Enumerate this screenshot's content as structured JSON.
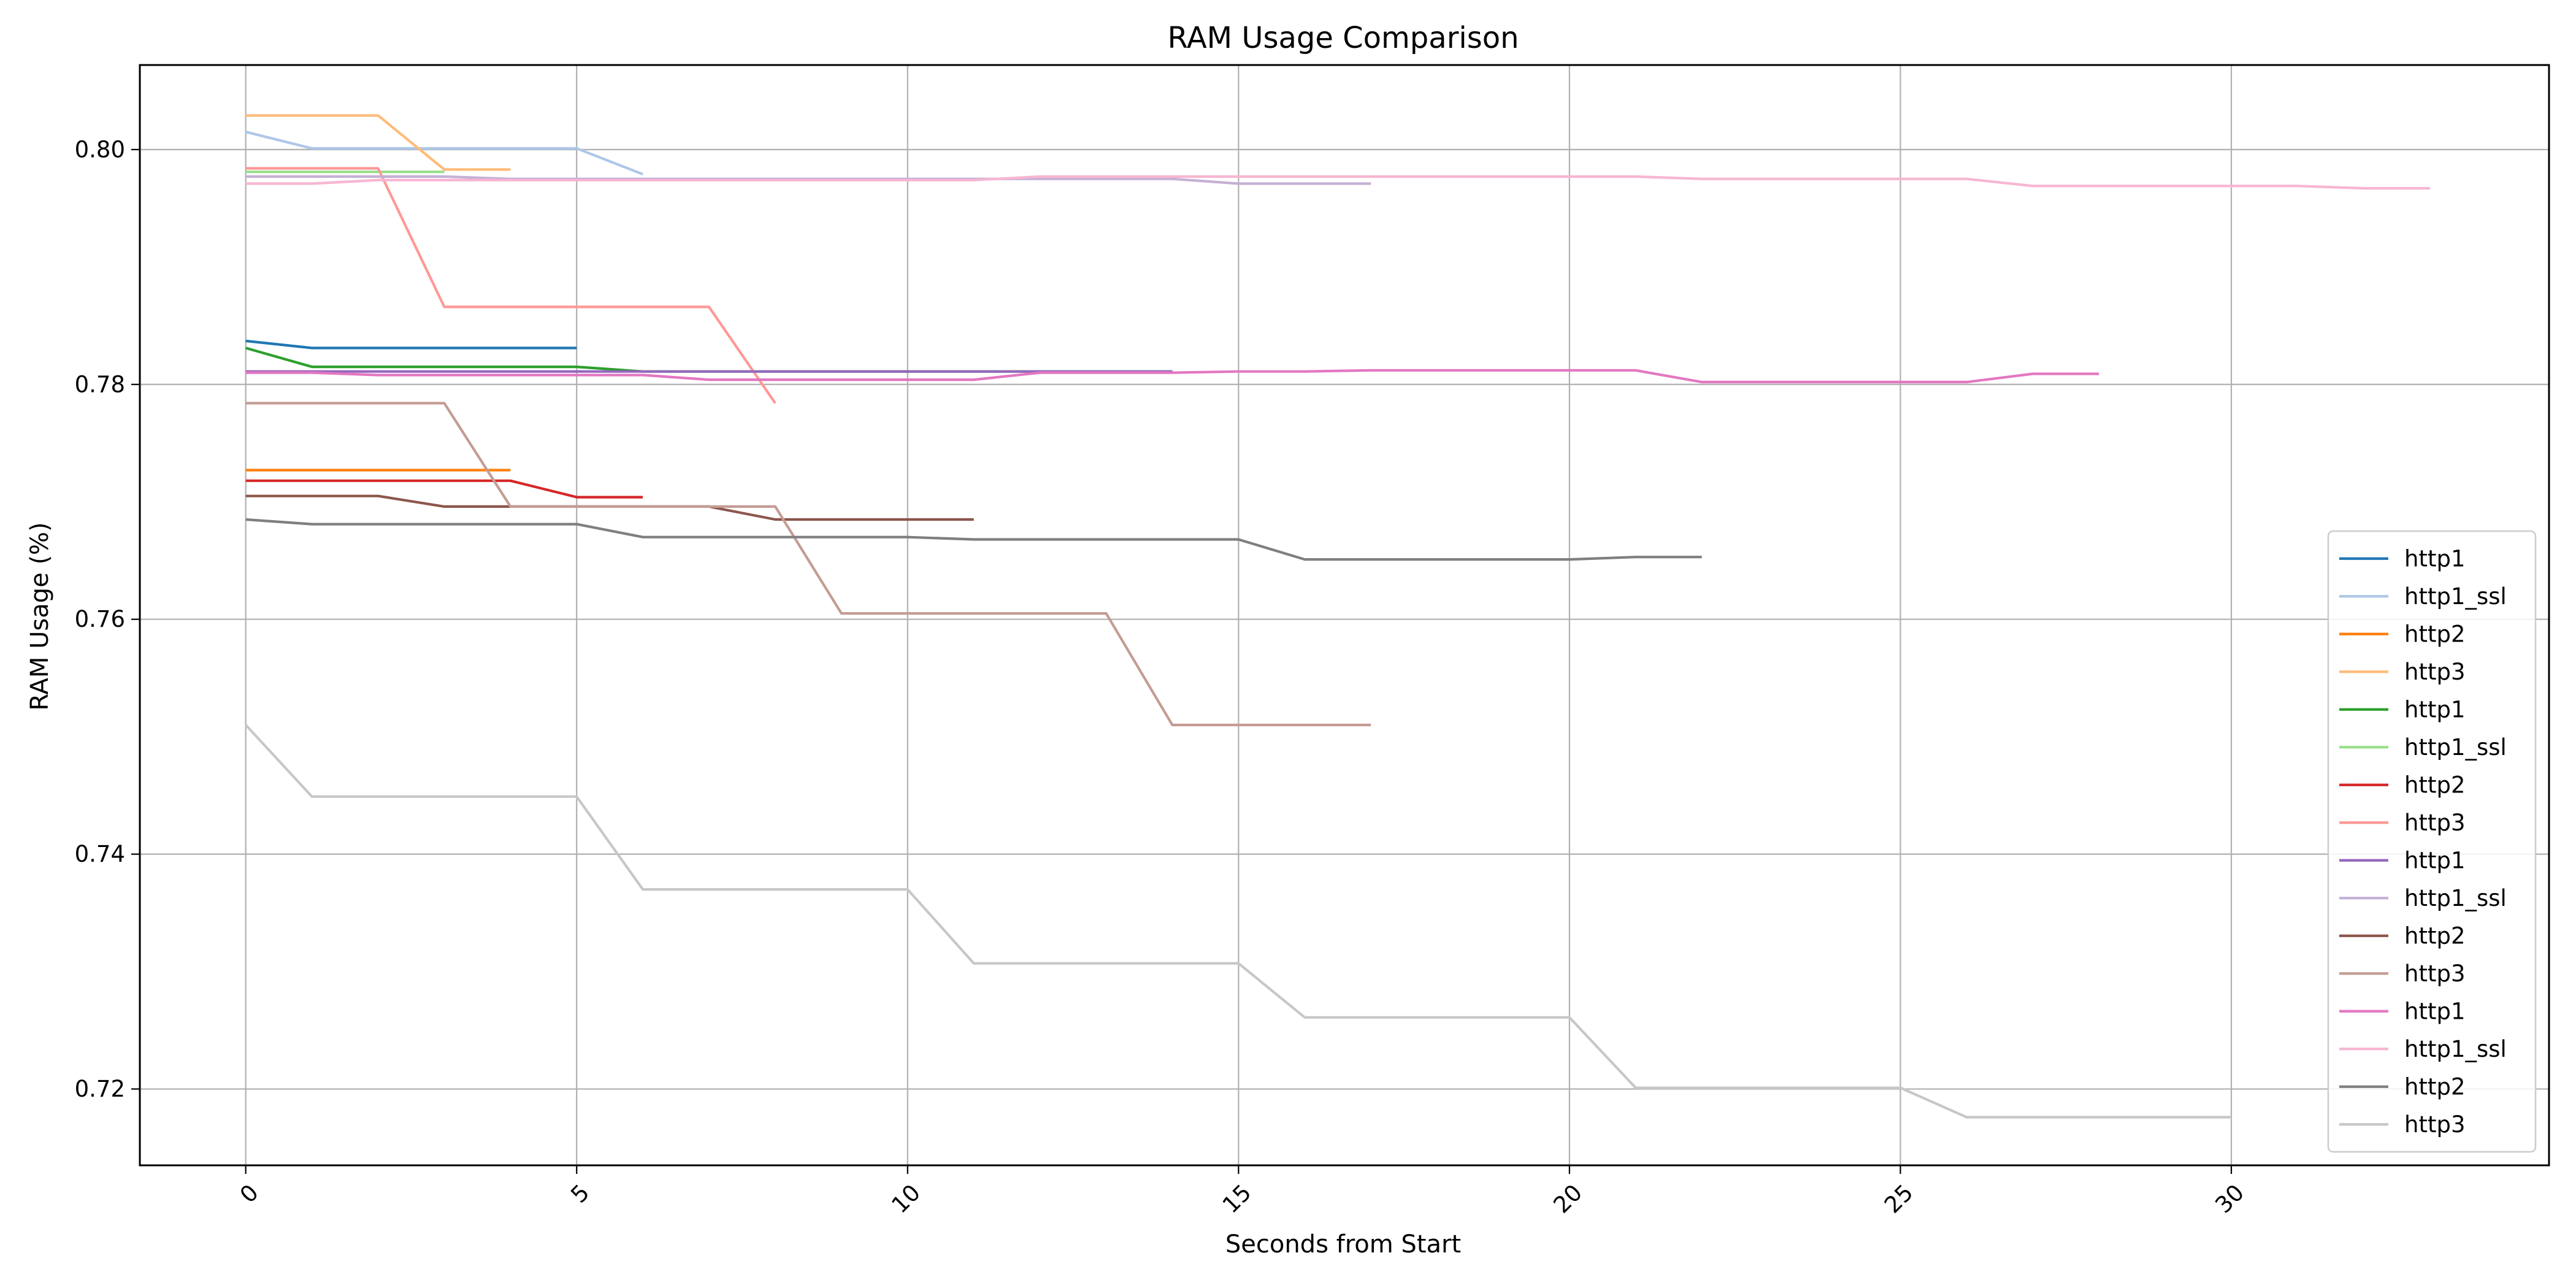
{
  "chart_data": {
    "type": "line",
    "title": "RAM Usage Comparison",
    "xlabel": "Seconds from Start",
    "ylabel": "RAM Usage (%)",
    "xlim": [
      -1.6,
      34.8
    ],
    "ylim": [
      0.7135,
      0.8072
    ],
    "xticks": [
      0,
      5,
      10,
      15,
      20,
      25,
      30
    ],
    "yticks": [
      0.72,
      0.74,
      0.76,
      0.78,
      0.8
    ],
    "ytick_labels": [
      "0.72",
      "0.74",
      "0.76",
      "0.78",
      "0.80"
    ],
    "xtick_rotation": 45,
    "grid": true,
    "legend_position": "lower right",
    "series": [
      {
        "name": "http1",
        "color": "#1f77b4",
        "x": [
          0,
          1,
          2,
          3,
          4,
          5
        ],
        "y": [
          0.7837,
          0.7831,
          0.7831,
          0.7831,
          0.7831,
          0.7831
        ]
      },
      {
        "name": "http1_ssl",
        "color": "#aec7e8",
        "x": [
          0,
          1,
          2,
          3,
          4,
          5,
          6
        ],
        "y": [
          0.8015,
          0.8001,
          0.8001,
          0.8001,
          0.8001,
          0.8001,
          0.7979
        ]
      },
      {
        "name": "http2",
        "color": "#ff7f0e",
        "x": [
          0,
          1,
          2,
          3,
          4
        ],
        "y": [
          0.7727,
          0.7727,
          0.7727,
          0.7727,
          0.7727
        ]
      },
      {
        "name": "http3",
        "color": "#ffbb78",
        "x": [
          0,
          1,
          2,
          3,
          4
        ],
        "y": [
          0.8029,
          0.8029,
          0.8029,
          0.7983,
          0.7983
        ]
      },
      {
        "name": "http1",
        "color": "#2ca02c",
        "x": [
          0,
          1,
          2,
          3,
          4,
          5,
          6,
          7,
          8,
          9,
          10,
          11,
          12,
          13,
          14
        ],
        "y": [
          0.7831,
          0.7815,
          0.7815,
          0.7815,
          0.7815,
          0.7815,
          0.7811,
          0.7811,
          0.7811,
          0.7811,
          0.7811,
          0.7811,
          0.7811,
          0.7811,
          0.7811
        ]
      },
      {
        "name": "http1_ssl",
        "color": "#98df8a",
        "x": [
          0,
          1,
          2,
          3
        ],
        "y": [
          0.7981,
          0.7981,
          0.7981,
          0.7981
        ]
      },
      {
        "name": "http2",
        "color": "#d62728",
        "x": [
          0,
          1,
          2,
          3,
          4,
          5,
          6
        ],
        "y": [
          0.7718,
          0.7718,
          0.7718,
          0.7718,
          0.7718,
          0.7704,
          0.7704
        ]
      },
      {
        "name": "http3",
        "color": "#ff9896",
        "x": [
          0,
          1,
          2,
          3,
          4,
          5,
          6,
          7,
          8
        ],
        "y": [
          0.7984,
          0.7984,
          0.7984,
          0.7866,
          0.7866,
          0.7866,
          0.7866,
          0.7866,
          0.7784
        ]
      },
      {
        "name": "http1",
        "color": "#9467bd",
        "x": [
          0,
          1,
          2,
          3,
          4,
          5,
          6,
          7,
          8,
          9,
          10,
          11,
          12,
          13,
          14
        ],
        "y": [
          0.7811,
          0.7811,
          0.7811,
          0.7811,
          0.7811,
          0.7811,
          0.7811,
          0.7811,
          0.7811,
          0.7811,
          0.7811,
          0.7811,
          0.7811,
          0.7811,
          0.7811
        ]
      },
      {
        "name": "http1_ssl",
        "color": "#c5b0d5",
        "x": [
          0,
          1,
          2,
          3,
          4,
          5,
          6,
          7,
          8,
          9,
          10,
          11,
          12,
          13,
          14,
          15,
          16,
          17
        ],
        "y": [
          0.7977,
          0.7977,
          0.7977,
          0.7977,
          0.7975,
          0.7975,
          0.7975,
          0.7975,
          0.7975,
          0.7975,
          0.7975,
          0.7975,
          0.7975,
          0.7975,
          0.7975,
          0.7971,
          0.7971,
          0.7971
        ]
      },
      {
        "name": "http2",
        "color": "#8c564b",
        "x": [
          0,
          1,
          2,
          3,
          4,
          5,
          6,
          7,
          8,
          9,
          10,
          11
        ],
        "y": [
          0.7705,
          0.7705,
          0.7705,
          0.7696,
          0.7696,
          0.7696,
          0.7696,
          0.7696,
          0.7685,
          0.7685,
          0.7685,
          0.7685
        ]
      },
      {
        "name": "http3",
        "color": "#c49c94",
        "x": [
          0,
          1,
          2,
          3,
          4,
          5,
          6,
          7,
          8,
          9,
          10,
          11,
          12,
          13,
          14,
          15,
          16,
          17
        ],
        "y": [
          0.7784,
          0.7784,
          0.7784,
          0.7784,
          0.7696,
          0.7696,
          0.7696,
          0.7696,
          0.7696,
          0.7605,
          0.7605,
          0.7605,
          0.7605,
          0.7605,
          0.751,
          0.751,
          0.751,
          0.751
        ]
      },
      {
        "name": "http1",
        "color": "#e377c2",
        "x": [
          0,
          1,
          2,
          3,
          4,
          5,
          6,
          7,
          8,
          9,
          10,
          11,
          12,
          13,
          14,
          15,
          16,
          17,
          18,
          19,
          20,
          21,
          22,
          23,
          24,
          25,
          26,
          27,
          28
        ],
        "y": [
          0.781,
          0.781,
          0.7808,
          0.7808,
          0.7808,
          0.7808,
          0.7808,
          0.7804,
          0.7804,
          0.7804,
          0.7804,
          0.7804,
          0.781,
          0.781,
          0.781,
          0.7811,
          0.7811,
          0.7812,
          0.7812,
          0.7812,
          0.7812,
          0.7812,
          0.7802,
          0.7802,
          0.7802,
          0.7802,
          0.7802,
          0.7809,
          0.7809
        ]
      },
      {
        "name": "http1_ssl",
        "color": "#f7b6d2",
        "x": [
          0,
          1,
          2,
          3,
          4,
          5,
          6,
          7,
          8,
          9,
          10,
          11,
          12,
          13,
          14,
          15,
          16,
          17,
          18,
          19,
          20,
          21,
          22,
          23,
          24,
          25,
          26,
          27,
          28,
          29,
          30,
          31,
          32,
          33
        ],
        "y": [
          0.7971,
          0.7971,
          0.7974,
          0.7974,
          0.7974,
          0.7974,
          0.7974,
          0.7974,
          0.7974,
          0.7974,
          0.7974,
          0.7974,
          0.7977,
          0.7977,
          0.7977,
          0.7977,
          0.7977,
          0.7977,
          0.7977,
          0.7977,
          0.7977,
          0.7977,
          0.7975,
          0.7975,
          0.7975,
          0.7975,
          0.7975,
          0.7969,
          0.7969,
          0.7969,
          0.7969,
          0.7969,
          0.7967,
          0.7967
        ]
      },
      {
        "name": "http2",
        "color": "#7f7f7f",
        "x": [
          0,
          1,
          2,
          3,
          4,
          5,
          6,
          7,
          8,
          9,
          10,
          11,
          12,
          13,
          14,
          15,
          16,
          17,
          18,
          19,
          20,
          21,
          22
        ],
        "y": [
          0.7685,
          0.7681,
          0.7681,
          0.7681,
          0.7681,
          0.7681,
          0.767,
          0.767,
          0.767,
          0.767,
          0.767,
          0.7668,
          0.7668,
          0.7668,
          0.7668,
          0.7668,
          0.7651,
          0.7651,
          0.7651,
          0.7651,
          0.7651,
          0.7653,
          0.7653
        ]
      },
      {
        "name": "http3",
        "color": "#c7c7c7",
        "x": [
          0,
          1,
          2,
          3,
          4,
          5,
          6,
          7,
          8,
          9,
          10,
          11,
          12,
          13,
          14,
          15,
          16,
          17,
          18,
          19,
          20,
          21,
          22,
          23,
          24,
          25,
          26,
          27,
          28,
          29,
          30
        ],
        "y": [
          0.751,
          0.7449,
          0.7449,
          0.7449,
          0.7449,
          0.7449,
          0.737,
          0.737,
          0.737,
          0.737,
          0.737,
          0.7307,
          0.7307,
          0.7307,
          0.7307,
          0.7307,
          0.7261,
          0.7261,
          0.7261,
          0.7261,
          0.7261,
          0.7201,
          0.7201,
          0.7201,
          0.7201,
          0.7201,
          0.7176,
          0.7176,
          0.7176,
          0.7176,
          0.7176
        ]
      }
    ]
  }
}
